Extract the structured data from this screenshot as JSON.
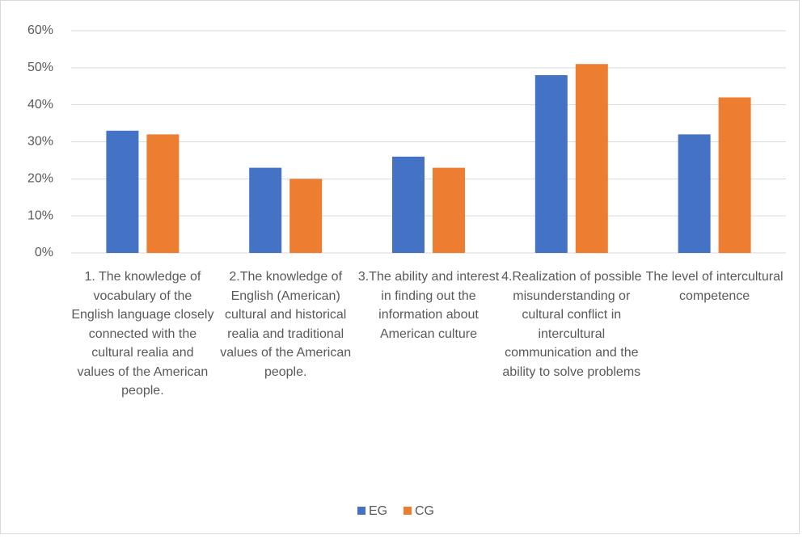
{
  "chart_data": {
    "type": "bar",
    "categories": [
      "1. The knowledge of vocabulary of the English language closely connected with the cultural realia and values of the American people.",
      "2.The knowledge of English (American) cultural and historical realia and traditional values of the American people.",
      "3.The ability and interest in finding out the information about American culture",
      "4.Realization of possible misunderstanding or cultural conflict in intercultural communication and the ability to solve problems",
      "The level of intercultural competence"
    ],
    "series": [
      {
        "name": "EG",
        "color": "#4472c4",
        "values": [
          33,
          23,
          26,
          48,
          32
        ]
      },
      {
        "name": "CG",
        "color": "#ed7d31",
        "values": [
          32,
          20,
          23,
          51,
          42
        ]
      }
    ],
    "ylim": [
      0,
      60
    ],
    "yticks": [
      {
        "value": 0,
        "label": "0%"
      },
      {
        "value": 10,
        "label": "10%"
      },
      {
        "value": 20,
        "label": "20%"
      },
      {
        "value": 30,
        "label": "30%"
      },
      {
        "value": 40,
        "label": "40%"
      },
      {
        "value": 50,
        "label": "50%"
      },
      {
        "value": 60,
        "label": "60%"
      }
    ],
    "grid": true,
    "legend": "bottom"
  }
}
